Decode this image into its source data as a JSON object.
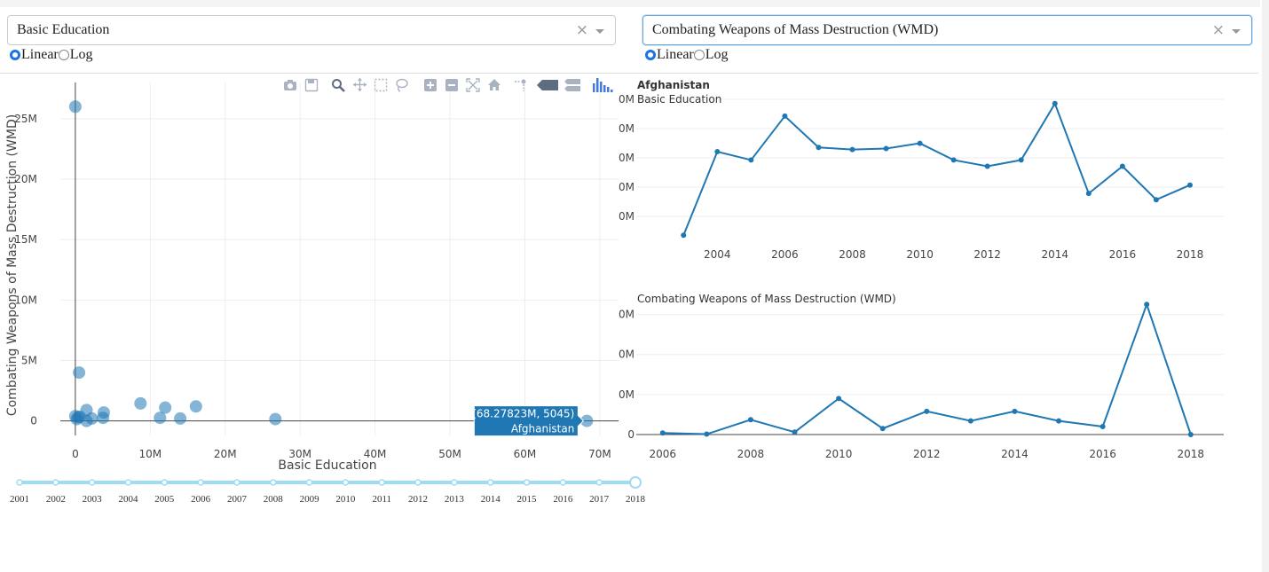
{
  "left_dropdown": {
    "value": "Basic Education"
  },
  "right_dropdown": {
    "value": "Combating Weapons of Mass Destruction (WMD)"
  },
  "left_scale": {
    "options": [
      "Linear",
      "Log"
    ],
    "selected": "Linear"
  },
  "right_scale": {
    "options": [
      "Linear",
      "Log"
    ],
    "selected": "Linear"
  },
  "clear_symbol": "×",
  "modebar_icons": [
    "camera-icon",
    "save-icon",
    "zoom-icon",
    "pan-icon",
    "box-select-icon",
    "lasso-icon",
    "zoom-in-icon",
    "zoom-out-icon",
    "autoscale-icon",
    "reset-axes-icon",
    "spike-lines-icon",
    "hover-closest-icon",
    "hover-compare-icon",
    "plotly-logo-icon"
  ],
  "slider": {
    "years": [
      "2001",
      "2002",
      "2003",
      "2004",
      "2005",
      "2006",
      "2007",
      "2008",
      "2009",
      "2010",
      "2011",
      "2012",
      "2013",
      "2014",
      "2015",
      "2016",
      "2017",
      "2018"
    ],
    "selected": "2018"
  },
  "chart_data": [
    {
      "type": "scatter",
      "xlabel": "Basic Education",
      "ylabel": "Combating Weapons of Mass Destruction (WMD)",
      "x_ticks": [
        "0",
        "10M",
        "20M",
        "30M",
        "40M",
        "50M",
        "60M",
        "70M"
      ],
      "y_ticks": [
        "0",
        "5M",
        "10M",
        "15M",
        "20M",
        "25M"
      ],
      "xlim": [
        -2000000,
        72500000
      ],
      "ylim": [
        -1200000,
        28000000
      ],
      "points": [
        {
          "x": 0,
          "y": 26000000
        },
        {
          "x": 500000,
          "y": 4000000
        },
        {
          "x": 0,
          "y": 400000
        },
        {
          "x": 200000,
          "y": 150000
        },
        {
          "x": 400000,
          "y": 300000
        },
        {
          "x": 600000,
          "y": 350000
        },
        {
          "x": 1500000,
          "y": 900000
        },
        {
          "x": 1500000,
          "y": 0
        },
        {
          "x": 2200000,
          "y": 200000
        },
        {
          "x": 3700000,
          "y": 250000
        },
        {
          "x": 3800000,
          "y": 700000
        },
        {
          "x": 8700000,
          "y": 1450000
        },
        {
          "x": 11300000,
          "y": 250000
        },
        {
          "x": 12000000,
          "y": 1100000
        },
        {
          "x": 14000000,
          "y": 200000
        },
        {
          "x": 16100000,
          "y": 1200000
        },
        {
          "x": 26700000,
          "y": 150000
        },
        {
          "x": 68278230,
          "y": 5045
        }
      ],
      "hover": {
        "line1": "(68.27823M, 5045)",
        "line2": "Afghanistan"
      },
      "grid": true
    },
    {
      "type": "line",
      "country": "Afghanistan",
      "title": "Basic Education",
      "x": [
        2003,
        2004,
        2005,
        2006,
        2007,
        2008,
        2009,
        2010,
        2011,
        2012,
        2013,
        2014,
        2015,
        2016,
        2017,
        2018
      ],
      "y": [
        32,
        72,
        68,
        89,
        74,
        73,
        73.5,
        76,
        68,
        65,
        68,
        95,
        52,
        65,
        49,
        56
      ],
      "x_ticks": [
        "2004",
        "2006",
        "2008",
        "2010",
        "2012",
        "2014",
        "2016",
        "2018"
      ],
      "y_ticks": [
        "0M",
        "0M",
        "0M",
        "0M",
        "0M"
      ],
      "xlim": [
        2001.6,
        2019
      ],
      "ylim": [
        30,
        100
      ],
      "grid": true
    },
    {
      "type": "line",
      "title": "Combating Weapons of Mass Destruction (WMD)",
      "x": [
        2006,
        2007,
        2008,
        2009,
        2010,
        2011,
        2012,
        2013,
        2014,
        2015,
        2016,
        2017,
        2018
      ],
      "y": [
        0.4,
        0.1,
        3.7,
        0.6,
        9,
        1.5,
        5.8,
        3.4,
        5.8,
        3.4,
        2,
        32.5,
        0
      ],
      "x_ticks": [
        "2006",
        "2008",
        "2010",
        "2012",
        "2014",
        "2016",
        "2018"
      ],
      "y_ticks": [
        "0",
        "0M",
        "0M",
        "0M"
      ],
      "xlim": [
        2005.4,
        2018.75
      ],
      "ylim": [
        0,
        35
      ],
      "grid": true
    }
  ]
}
